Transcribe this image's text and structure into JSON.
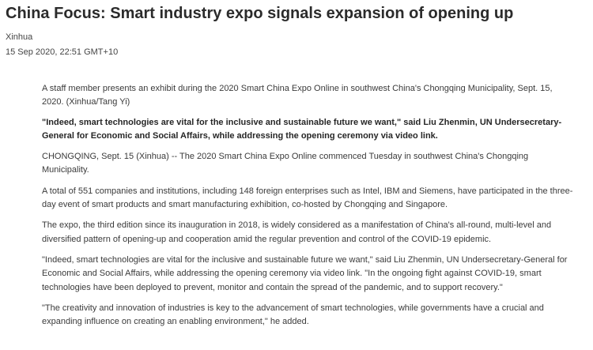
{
  "article": {
    "headline": "China Focus: Smart industry expo signals expansion of opening up",
    "source": "Xinhua",
    "date": "15 Sep 2020, 22:51 GMT+10",
    "paragraphs": [
      {
        "text": "A staff member presents an exhibit during the 2020 Smart China Expo Online in southwest China's Chongqing Municipality, Sept. 15, 2020. (Xinhua/Tang Yi)",
        "style": "caption"
      },
      {
        "text": "\"Indeed, smart technologies are vital for the inclusive and sustainable future we want,\" said Liu Zhenmin, UN Undersecretary-General for Economic and Social Affairs, while addressing the opening ceremony via video link.",
        "style": "bold"
      },
      {
        "text": "CHONGQING, Sept. 15 (Xinhua) -- The 2020 Smart China Expo Online commenced Tuesday in southwest China's Chongqing Municipality.",
        "style": "normal"
      },
      {
        "text": "A total of 551 companies and institutions, including 148 foreign enterprises such as Intel, IBM and Siemens, have participated in the three-day event of smart products and smart manufacturing exhibition, co-hosted by Chongqing and Singapore.",
        "style": "normal"
      },
      {
        "text": "The expo, the third edition since its inauguration in 2018, is widely considered as a manifestation of China's all-round, multi-level and diversified pattern of opening-up and cooperation amid the regular prevention and control of the COVID-19 epidemic.",
        "style": "normal"
      },
      {
        "text": "\"Indeed, smart technologies are vital for the inclusive and sustainable future we want,\" said Liu Zhenmin, UN Undersecretary-General for Economic and Social Affairs, while addressing the opening ceremony via video link. \"In the ongoing fight against COVID-19, smart technologies have been deployed to prevent, monitor and contain the spread of the pandemic, and to support recovery.\"",
        "style": "normal"
      },
      {
        "text": "\"The creativity and innovation of industries is key to the advancement of smart technologies, while governments have a crucial and expanding influence on creating an enabling environment,\" he added.",
        "style": "normal"
      }
    ]
  }
}
